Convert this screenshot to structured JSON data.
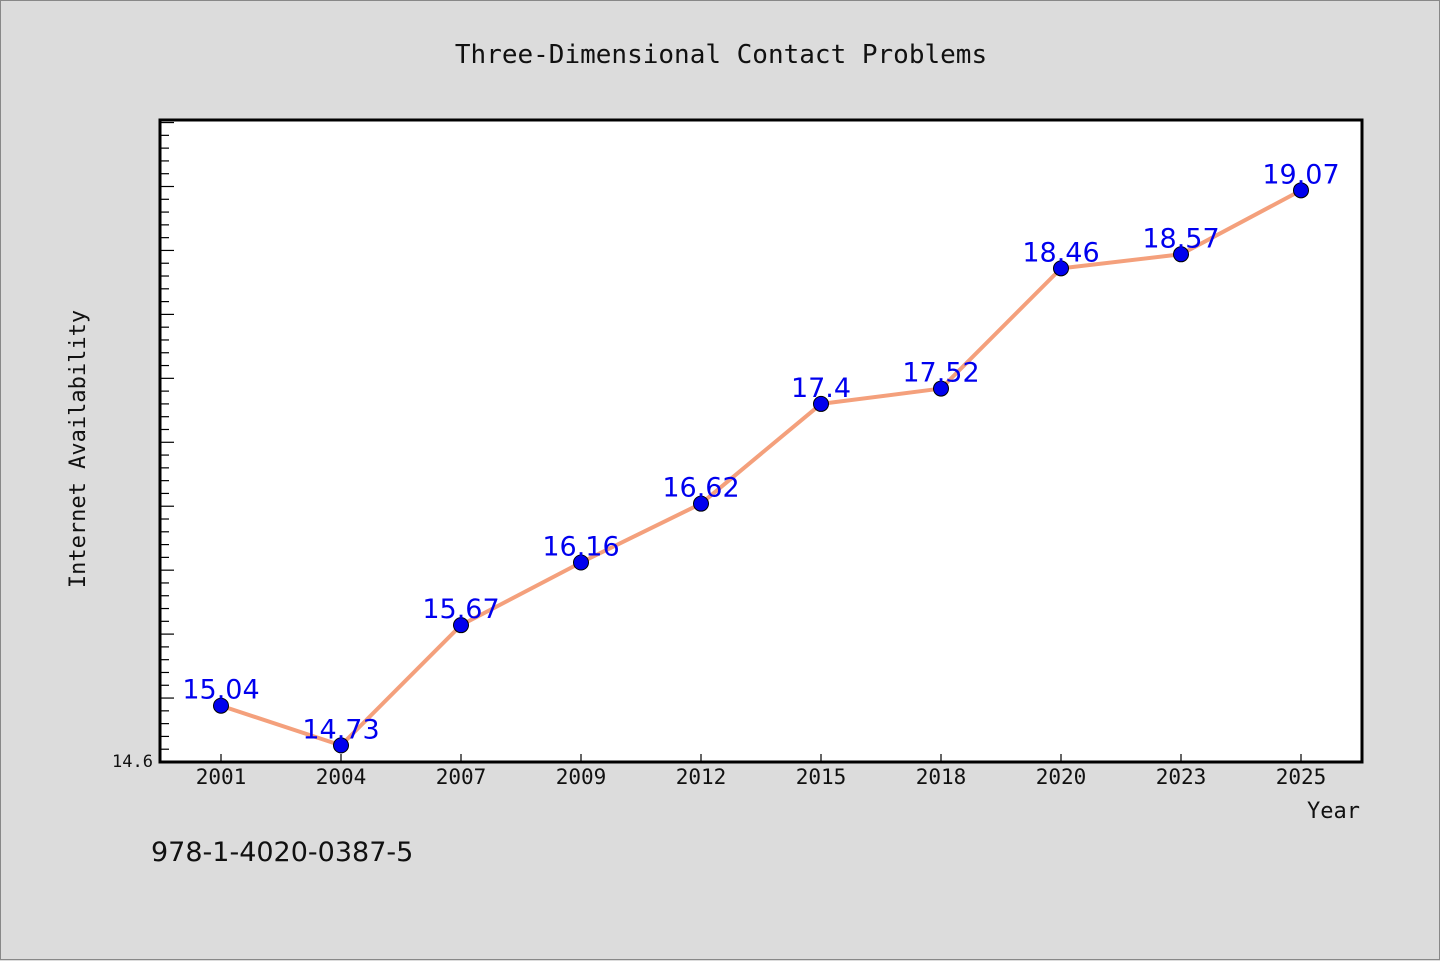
{
  "chart_data": {
    "type": "line",
    "title": "Three-Dimensional Contact Problems",
    "xlabel": "Year",
    "ylabel": "Internet Availability",
    "categories": [
      "2001",
      "2004",
      "2007",
      "2009",
      "2012",
      "2015",
      "2018",
      "2020",
      "2023",
      "2025"
    ],
    "series": [
      {
        "values": [
          15.04,
          14.73,
          15.67,
          16.16,
          16.62,
          17.4,
          17.52,
          18.46,
          18.57,
          19.07
        ],
        "labels": [
          "15.04",
          "14.73",
          "15.67",
          "16.16",
          "16.62",
          "17.4",
          "17.52",
          "18.46",
          "18.57",
          "19.07"
        ],
        "line_color": "#f4a07c",
        "marker_color": "#0000ee",
        "label_color": "#0000ee"
      }
    ],
    "ylim": [
      14.6,
      19.62
    ],
    "y_min_label": "14.6",
    "grid": false,
    "legend": "none"
  },
  "footer": {
    "code": "978-1-4020-0387-5"
  }
}
